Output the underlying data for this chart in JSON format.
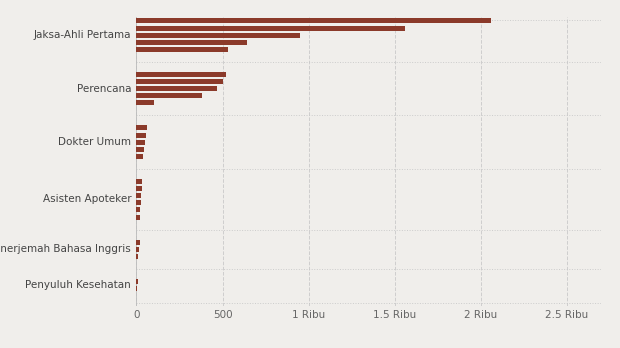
{
  "categories": [
    "Jaksa-Ahli Pertama",
    "Perencana",
    "Dokter Umum",
    "Asisten Apoteker",
    "Penerjemah Bahasa Inggris",
    "Penyuluh Kesehatan"
  ],
  "bar_groups": [
    [
      2060,
      1560,
      950,
      640,
      530
    ],
    [
      520,
      500,
      470,
      380,
      100
    ],
    [
      62,
      55,
      50,
      45,
      40
    ],
    [
      35,
      30,
      28,
      25,
      22,
      20
    ],
    [
      18,
      15,
      12
    ],
    [
      8,
      5
    ]
  ],
  "bar_color": "#8B3A2A",
  "background_color": "#f0eeeb",
  "grid_color": "#c8c8c8",
  "xtick_labels": [
    "0",
    "500",
    "1 Ribu",
    "1.5 Ribu",
    "2 Ribu",
    "2.5 Ribu"
  ],
  "xtick_values": [
    0,
    500,
    1000,
    1500,
    2000,
    2500
  ],
  "xlim": [
    0,
    2700
  ],
  "label_fontsize": 7.5,
  "tick_fontsize": 7.5
}
